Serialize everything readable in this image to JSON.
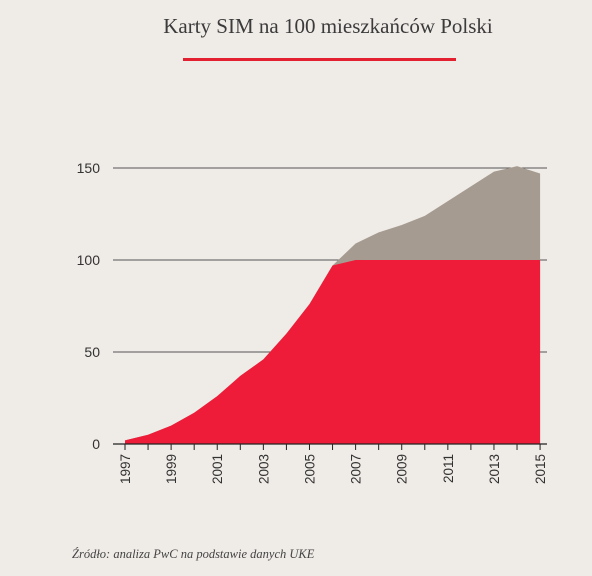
{
  "title": "Karty SIM na 100 mieszkańców Polski",
  "source": "Źródło: analiza PwC na podstawie danych UKE",
  "colors": {
    "background": "#efebe7",
    "accent": "#e2202f",
    "series_below_100": "#ee1c39",
    "series_above_100": "#a69b91",
    "gridline": "#555555",
    "text": "#333333"
  },
  "chart_data": {
    "type": "area",
    "title": "Karty SIM na 100 mieszkańców Polski",
    "xlabel": "",
    "ylabel": "",
    "x": [
      1997,
      1998,
      1999,
      2000,
      2001,
      2002,
      2003,
      2004,
      2005,
      2006,
      2007,
      2008,
      2009,
      2010,
      2011,
      2012,
      2013,
      2014,
      2015
    ],
    "values": [
      2,
      5,
      10,
      17,
      26,
      37,
      46,
      60,
      76,
      97,
      109,
      115,
      119,
      124,
      132,
      140,
      148,
      151,
      147
    ],
    "series": [
      {
        "values": [
          2,
          5,
          10,
          17,
          26,
          37,
          46,
          60,
          76,
          97,
          100,
          100,
          100,
          100,
          100,
          100,
          100,
          100,
          100
        ]
      },
      {
        "values": [
          0,
          0,
          0,
          0,
          0,
          0,
          0,
          0,
          0,
          0,
          9,
          15,
          19,
          24,
          32,
          40,
          48,
          51,
          47
        ]
      }
    ],
    "ylim": [
      0,
      150
    ],
    "yticks": [
      "0",
      "50",
      "100",
      "150"
    ],
    "xticks": [
      "1997",
      "1999",
      "2001",
      "2003",
      "2005",
      "2007",
      "2009",
      "2011",
      "2013",
      "2015"
    ],
    "grid": true,
    "legend": "none"
  }
}
